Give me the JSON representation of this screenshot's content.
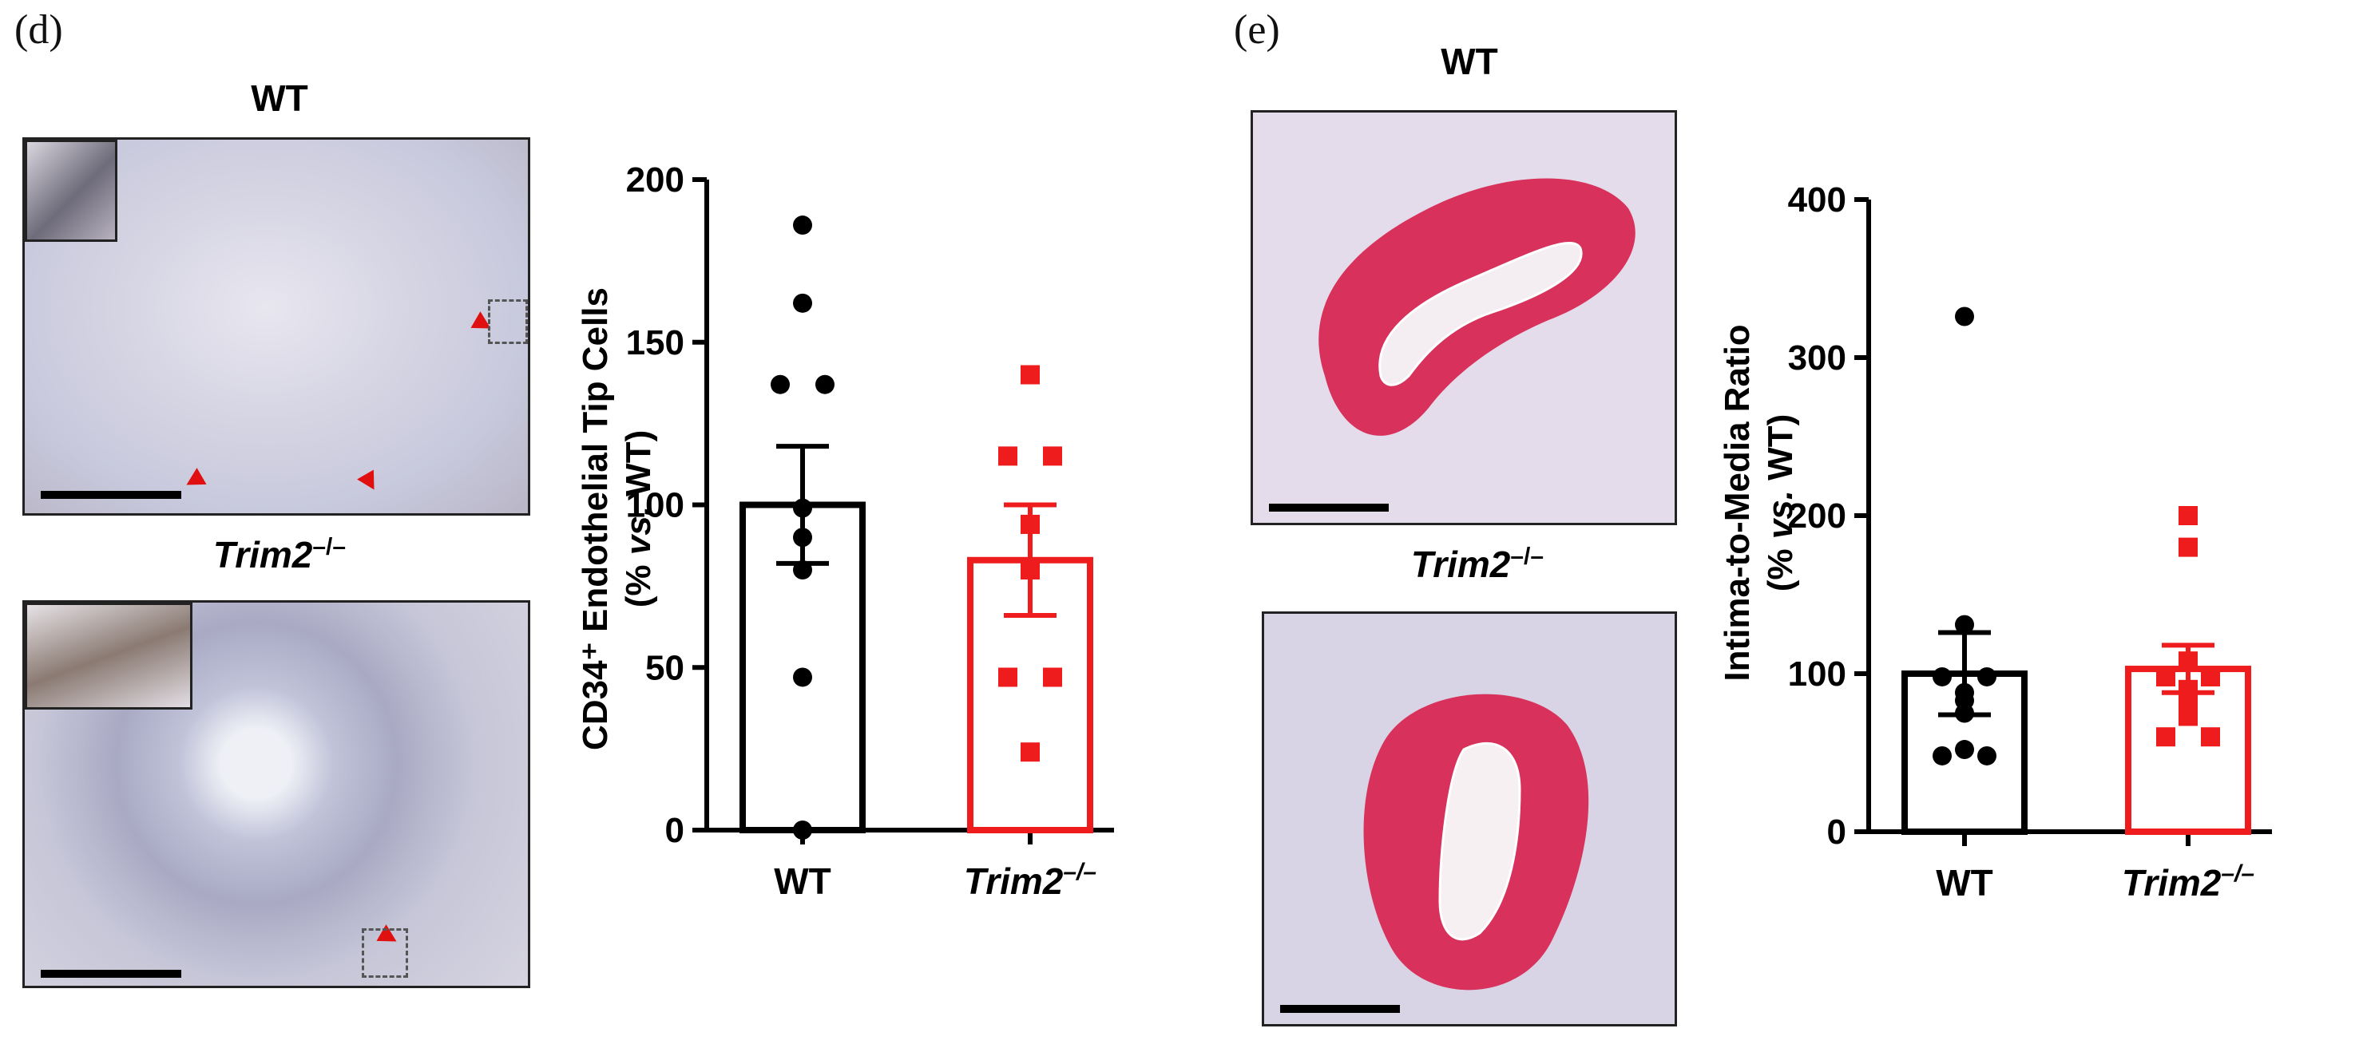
{
  "panels": {
    "d": {
      "letter": "(d)",
      "images": {
        "top_title": "WT",
        "bottom_title": "Trim2",
        "bottom_sup": "–/–"
      },
      "chart": {
        "ylabel_line1": "CD34⁺ Endothelial Tip Cells",
        "ylabel_line2_pre": "(% ",
        "ylabel_line2_vs": "vs.",
        "ylabel_line2_post": " WT)"
      }
    },
    "e": {
      "letter": "(e)",
      "images": {
        "top_title": "WT",
        "bottom_title": "Trim2",
        "bottom_sup": "–/–"
      },
      "chart": {
        "ylabel_line1": "Intima-to-Media Ratio",
        "ylabel_line2_pre": "(% ",
        "ylabel_line2_vs": "vs.",
        "ylabel_line2_post": " WT)"
      }
    }
  },
  "colors": {
    "wt": "#000000",
    "ko": "#ee1c1c",
    "stain_d": "#c9cbe0",
    "stain_e_vessel": "#d8315b",
    "stain_e_bg": "#dcd6ea"
  },
  "chart_data": [
    {
      "type": "bar",
      "title": "",
      "categories": [
        "WT",
        "Trim2–/–"
      ],
      "ylim": [
        0,
        200
      ],
      "yticks": [
        0,
        50,
        100,
        150,
        200
      ],
      "series": [
        {
          "name": "WT",
          "mean": 100,
          "sem": 18,
          "points": [
            186,
            162,
            137,
            137,
            99,
            90,
            80,
            47,
            0
          ]
        },
        {
          "name": "Trim2–/–",
          "mean": 83,
          "sem": 17,
          "points": [
            140,
            115,
            115,
            94,
            80,
            47,
            47,
            24
          ]
        }
      ]
    },
    {
      "type": "bar",
      "title": "",
      "categories": [
        "WT",
        "Trim2–/–"
      ],
      "ylim": [
        0,
        400
      ],
      "yticks": [
        0,
        100,
        200,
        300,
        400
      ],
      "series": [
        {
          "name": "WT",
          "mean": 100,
          "sem": 26,
          "points": [
            326,
            131,
            98,
            98,
            88,
            83,
            75,
            52,
            48,
            48
          ]
        },
        {
          "name": "Trim2–/–",
          "mean": 103,
          "sem": 15,
          "points": [
            200,
            180,
            108,
            98,
            98,
            90,
            83,
            73,
            60,
            60
          ]
        }
      ]
    }
  ]
}
